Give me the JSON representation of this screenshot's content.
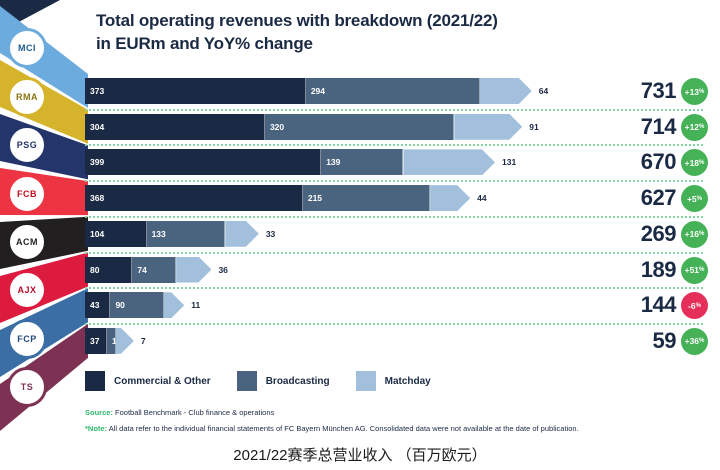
{
  "header": {
    "title_line1": "Total operating revenues with breakdown (2021/22)",
    "title_line2": "in EURm and YoY% change"
  },
  "sidebar": {
    "clubs": [
      {
        "name": "Manchester City",
        "abbr": "MCI",
        "color": "#6cabdd",
        "text_color": "#1c5b8f"
      },
      {
        "name": "Real Madrid",
        "abbr": "RMA",
        "color": "#d5b42b",
        "text_color": "#8a7110"
      },
      {
        "name": "Paris Saint-Germain",
        "abbr": "PSG",
        "color": "#24356b",
        "text_color": "#24356b"
      },
      {
        "name": "FC Bayern München",
        "abbr": "FCB",
        "color": "#ed3443",
        "text_color": "#c20d1e"
      },
      {
        "name": "AC Milan",
        "abbr": "ACM",
        "color": "#221f20",
        "text_color": "#221f20"
      },
      {
        "name": "Ajax",
        "abbr": "AJX",
        "color": "#dc1b3f",
        "text_color": "#b60b2c"
      },
      {
        "name": "FC Porto",
        "abbr": "FCP",
        "color": "#3a6ea5",
        "text_color": "#234d7c"
      },
      {
        "name": "Trabzonspor",
        "abbr": "TS",
        "color": "#7d3153",
        "text_color": "#7d3153"
      }
    ],
    "corner_color": "#1b2a44"
  },
  "chart_data": {
    "type": "bar",
    "orientation": "horizontal-stacked",
    "title": "Total operating revenues with breakdown (2021/22) in EURm and YoY% change",
    "unit": "EURm",
    "categories": [
      "Manchester City",
      "Real Madrid",
      "Paris Saint-Germain",
      "FC Bayern München",
      "AC Milan",
      "Ajax",
      "FC Porto",
      "Trabzonspor"
    ],
    "series": [
      {
        "name": "Commercial & Other",
        "color": "#1b2a44",
        "values": [
          373,
          304,
          399,
          368,
          104,
          80,
          43,
          37
        ]
      },
      {
        "name": "Broadcasting",
        "color": "#4a6480",
        "values": [
          294,
          320,
          139,
          215,
          133,
          74,
          90,
          15
        ]
      },
      {
        "name": "Matchday",
        "color": "#a2c0dc",
        "values": [
          64,
          91,
          131,
          44,
          33,
          36,
          11,
          7
        ]
      }
    ],
    "totals": [
      731,
      714,
      670,
      627,
      269,
      189,
      144,
      59
    ],
    "yoy_change": [
      "+13%",
      "+12%",
      "+18%",
      "+5%",
      "+16%",
      "+51%",
      "-6%",
      "+36%"
    ],
    "yoy_positive_color": "#45b257",
    "yoy_negative_color": "#e62e5a",
    "separator_color": "#85d2a2",
    "xlim": [
      0,
      731
    ],
    "legend_position": "bottom"
  },
  "legend": {
    "items": [
      {
        "label": "Commercial & Other",
        "color": "#1b2a44"
      },
      {
        "label": "Broadcasting",
        "color": "#4a6480"
      },
      {
        "label": "Matchday",
        "color": "#a2c0dc"
      }
    ]
  },
  "footer": {
    "source_label": "Source:",
    "source_text": " Football Benchmark - Club finance & operations",
    "note_label": "*Note:",
    "note_text": " All data refer to the individual financial statements of FC Bayern München AG. Consolidated data were not available at the date of publication."
  },
  "caption": "2021/22赛季总营业收入 （百万欧元）"
}
